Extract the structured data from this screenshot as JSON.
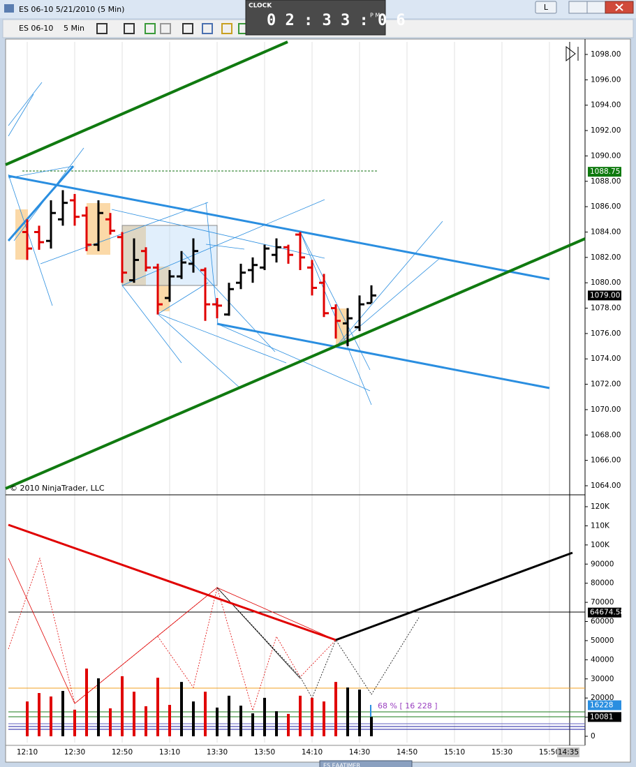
{
  "window": {
    "title": "ES 06-10  5/21/2010 (5 Min)",
    "button": "L"
  },
  "toolbar": {
    "instrument": "ES 06-10",
    "period": "5 Min"
  },
  "clock": {
    "label": "CLOCK",
    "time": "0 2 : 3 3 : 0 6",
    "ampm": "P M"
  },
  "copyright": "© 2010 NinjaTrader, LLC",
  "current_time": "14:35",
  "bottom_tab": "ES EAATIMER",
  "chart_data": [
    {
      "type": "ohlc",
      "x": [
        "12:10",
        "12:15",
        "12:20",
        "12:25",
        "12:30",
        "12:35",
        "12:40",
        "12:45",
        "12:50",
        "12:55",
        "13:00",
        "13:05",
        "13:10",
        "13:15",
        "13:20",
        "13:25",
        "13:30",
        "13:35",
        "13:40",
        "13:45",
        "13:50",
        "13:55",
        "14:00",
        "14:05",
        "14:10",
        "14:15",
        "14:20",
        "14:25",
        "14:30",
        "14:35"
      ],
      "open": [
        1084,
        1084,
        1083.3,
        1085,
        1086.5,
        1085.3,
        1083,
        1085,
        1083.6,
        1080.2,
        1082.5,
        1081.2,
        1078.8,
        1080.5,
        1081.5,
        1081,
        1078.3,
        1077.5,
        1080,
        1081,
        1081.2,
        1082.2,
        1082.8,
        1083.8,
        1081.2,
        1080,
        1078,
        1076.8,
        1076.5,
        1078.4
      ],
      "high": [
        1085,
        1084.5,
        1086.5,
        1087.3,
        1087,
        1086,
        1086.5,
        1085.5,
        1084,
        1083.5,
        1082.8,
        1081.5,
        1081,
        1082.5,
        1083.5,
        1081.2,
        1078.8,
        1080,
        1081.5,
        1082,
        1083,
        1083.5,
        1083,
        1084,
        1081.8,
        1080.7,
        1078.3,
        1078,
        1079,
        1079.8
      ],
      "low": [
        1081.8,
        1082.6,
        1082.7,
        1084.5,
        1084.5,
        1082.5,
        1082.5,
        1083.8,
        1080,
        1080,
        1080.9,
        1077.5,
        1078.5,
        1080.3,
        1080.8,
        1077,
        1077.2,
        1077.4,
        1079.5,
        1080,
        1081,
        1081.6,
        1081.5,
        1081,
        1079,
        1077.3,
        1075.6,
        1075,
        1076.2,
        1078.4
      ],
      "close": [
        1082.7,
        1083.2,
        1085.5,
        1086.3,
        1085.2,
        1083,
        1085.5,
        1084.1,
        1080.8,
        1081.8,
        1081.2,
        1078.3,
        1080.5,
        1081.6,
        1082.5,
        1078.3,
        1078.2,
        1079.5,
        1080.8,
        1081.4,
        1082.7,
        1082.8,
        1082.2,
        1082,
        1079.6,
        1077.6,
        1077,
        1077.2,
        1078.3,
        1079
      ],
      "up_color": "#000000",
      "down_color": "#e00000",
      "ylim": [
        1063,
        1099.5
      ],
      "yticks": [
        {
          "value": 1064,
          "label": "1064.00"
        },
        {
          "value": 1066,
          "label": "1066.00"
        },
        {
          "value": 1068,
          "label": "1068.00"
        },
        {
          "value": 1070,
          "label": "1070.00"
        },
        {
          "value": 1072,
          "label": "1072.00"
        },
        {
          "value": 1074,
          "label": "1074.00"
        },
        {
          "value": 1076,
          "label": "1076.00"
        },
        {
          "value": 1078,
          "label": "1078.00"
        },
        {
          "value": 1080,
          "label": "1080.00"
        },
        {
          "value": 1082,
          "label": "1082.00"
        },
        {
          "value": 1084,
          "label": "1084.00"
        },
        {
          "value": 1086,
          "label": "1086.00"
        },
        {
          "value": 1088,
          "label": "1088.00"
        },
        {
          "value": 1090,
          "label": "1090.00"
        },
        {
          "value": 1092,
          "label": "1092.00"
        },
        {
          "value": 1094,
          "label": "1094.00"
        },
        {
          "value": 1096,
          "label": "1096.00"
        },
        {
          "value": 1098,
          "label": "1098.00"
        }
      ],
      "xticks": [
        "12:10",
        "12:30",
        "12:50",
        "13:10",
        "13:30",
        "13:50",
        "14:10",
        "14:30",
        "14:50",
        "15:10",
        "15:30",
        "15:50"
      ],
      "markers": [
        {
          "value": 1088.75,
          "color": "#0f7a0f"
        },
        {
          "value": 1079,
          "label": "1079.00",
          "color": "#000000"
        }
      ]
    },
    {
      "type": "bar",
      "x": [
        "12:10",
        "12:15",
        "12:20",
        "12:25",
        "12:30",
        "12:35",
        "12:40",
        "12:45",
        "12:50",
        "12:55",
        "13:00",
        "13:05",
        "13:10",
        "13:15",
        "13:20",
        "13:25",
        "13:30",
        "13:35",
        "13:40",
        "13:45",
        "13:50",
        "13:55",
        "14:00",
        "14:05",
        "14:10",
        "14:15",
        "14:20",
        "14:25",
        "14:30",
        "14:35"
      ],
      "values": [
        18200,
        22600,
        20800,
        23700,
        13900,
        35400,
        30300,
        14600,
        31400,
        23300,
        15700,
        30600,
        16400,
        28400,
        18200,
        23300,
        15000,
        21200,
        16000,
        12000,
        20100,
        13100,
        11700,
        21200,
        20100,
        18200,
        28400,
        25500,
        24400,
        10081
      ],
      "colors": [
        "#e00000",
        "#e00000",
        "#e00000",
        "#000000",
        "#e00000",
        "#e00000",
        "#000000",
        "#e00000",
        "#e00000",
        "#e00000",
        "#e00000",
        "#e00000",
        "#e00000",
        "#000000",
        "#000000",
        "#e00000",
        "#000000",
        "#000000",
        "#000000",
        "#000000",
        "#000000",
        "#000000",
        "#e00000",
        "#e00000",
        "#e00000",
        "#e00000",
        "#e00000",
        "#000000",
        "#000000",
        "#000000"
      ],
      "ylim": [
        -3000,
        126000
      ],
      "yticks": [
        0,
        10000,
        20000,
        30000,
        40000,
        50000,
        60000,
        70000,
        80000,
        90000,
        {
          "value": 100000,
          "label": "100K"
        },
        {
          "value": 110000,
          "label": "110K"
        },
        {
          "value": 120000,
          "label": "120K"
        }
      ],
      "markers": [
        {
          "value": 64674.58,
          "color": "#000000"
        },
        {
          "value": 16228,
          "color": "#2a8ee0"
        },
        {
          "value": 10081,
          "color": "#000000"
        }
      ],
      "annotation": "68 % [ 16 228 ]"
    }
  ]
}
